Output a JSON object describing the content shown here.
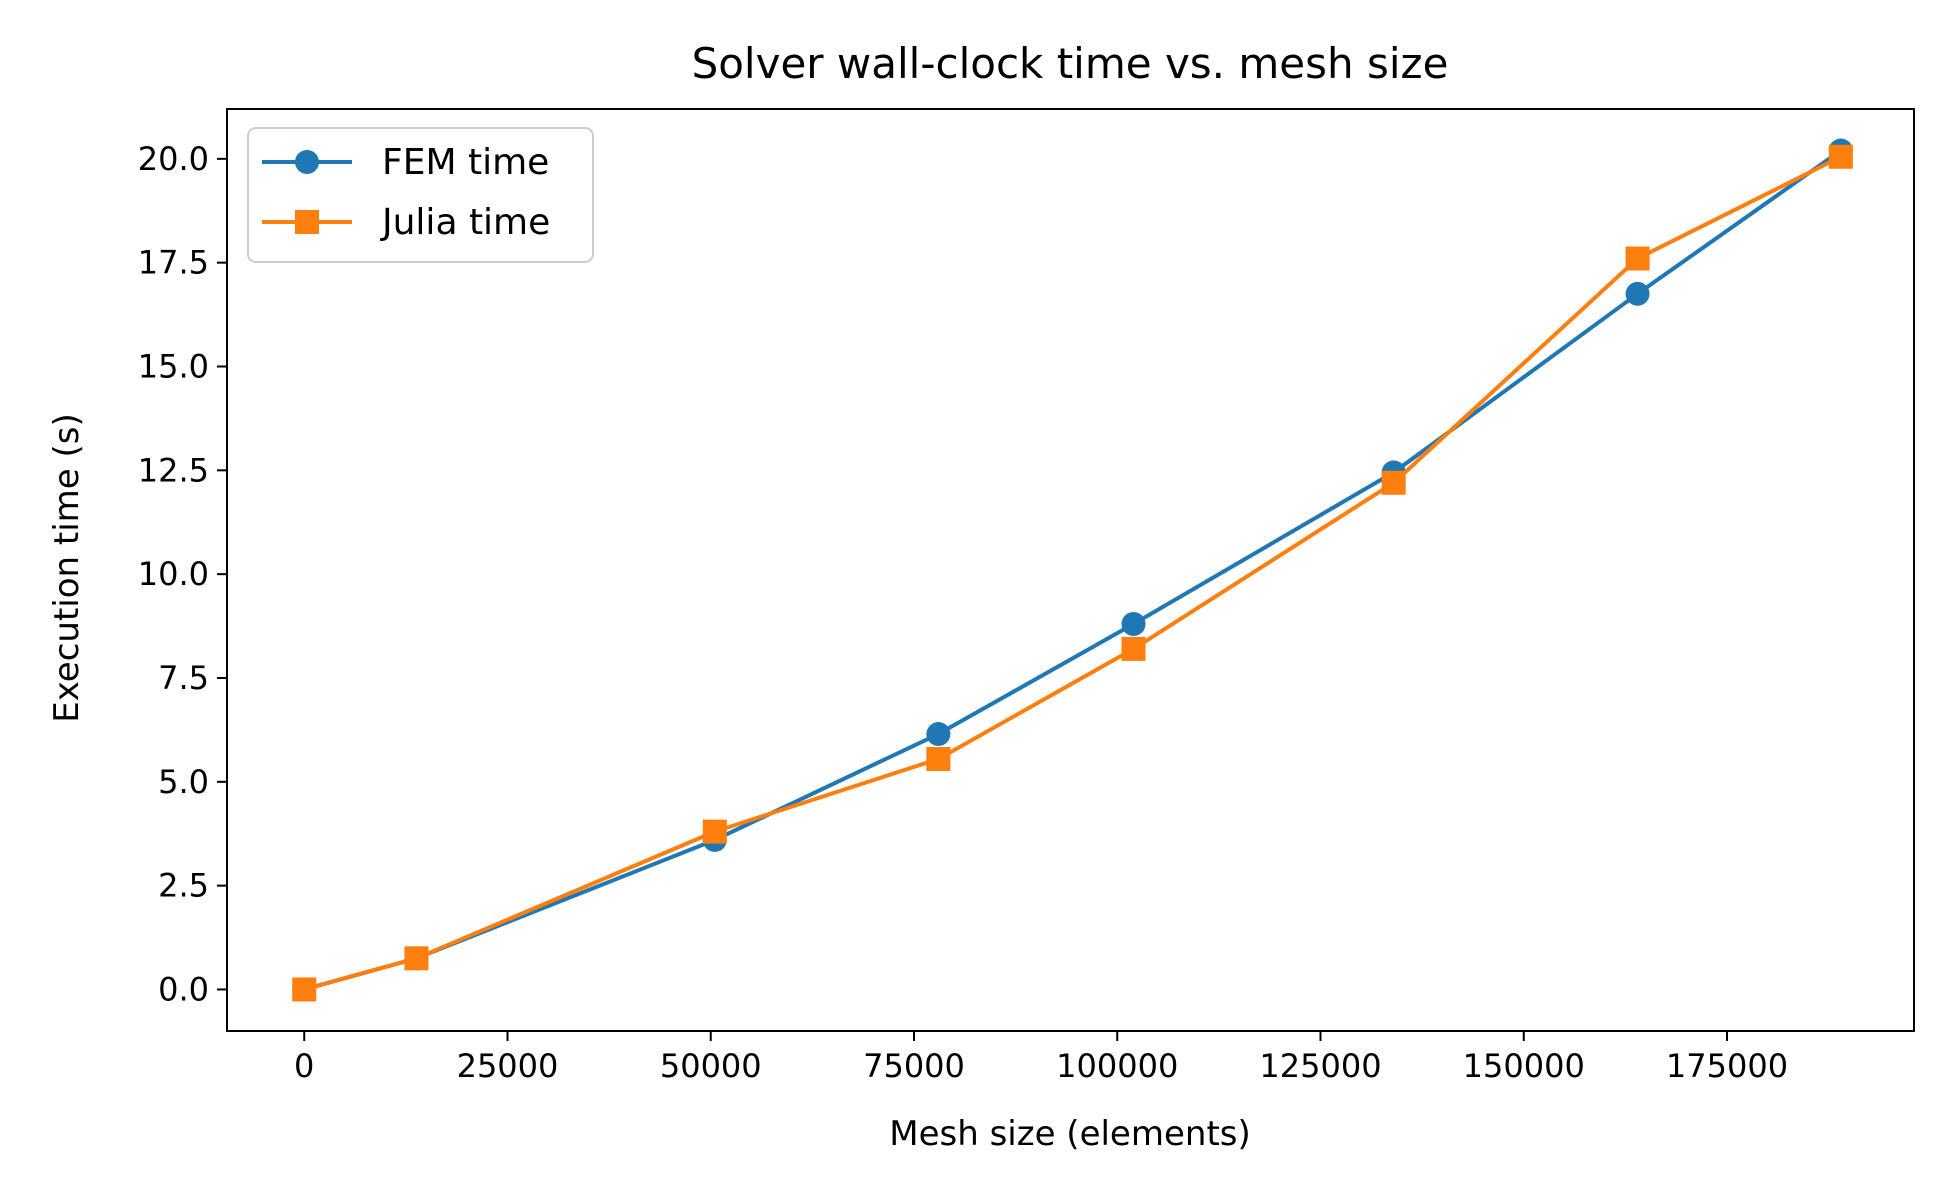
{
  "chart_data": {
    "type": "line",
    "title": "Solver wall-clock time vs. mesh size",
    "xlabel": "Mesh size (elements)",
    "ylabel": "Execution time (s)",
    "xlim": [
      -9500,
      198000
    ],
    "ylim": [
      -1.0,
      21.2
    ],
    "xticks": [
      0,
      25000,
      50000,
      75000,
      100000,
      125000,
      150000,
      175000
    ],
    "xtick_labels": [
      "0",
      "25000",
      "50000",
      "75000",
      "100000",
      "125000",
      "150000",
      "175000"
    ],
    "yticks": [
      0.0,
      2.5,
      5.0,
      7.5,
      10.0,
      12.5,
      15.0,
      17.5,
      20.0
    ],
    "ytick_labels": [
      "0.0",
      "2.5",
      "5.0",
      "7.5",
      "10.0",
      "12.5",
      "15.0",
      "17.5",
      "20.0"
    ],
    "grid": false,
    "legend_position": "upper left",
    "series": [
      {
        "name": "FEM time",
        "color": "#1f77b4",
        "marker": "circle",
        "x": [
          0,
          13800,
          50500,
          78000,
          102000,
          134000,
          164000,
          189000
        ],
        "y": [
          0.0,
          0.75,
          3.6,
          6.15,
          8.8,
          12.45,
          16.75,
          20.2
        ]
      },
      {
        "name": "Julia time",
        "color": "#ff7f0e",
        "marker": "square",
        "x": [
          0,
          13800,
          50500,
          78000,
          102000,
          134000,
          164000,
          189000
        ],
        "y": [
          0.0,
          0.75,
          3.8,
          5.55,
          8.2,
          12.2,
          17.6,
          20.05
        ]
      }
    ]
  }
}
